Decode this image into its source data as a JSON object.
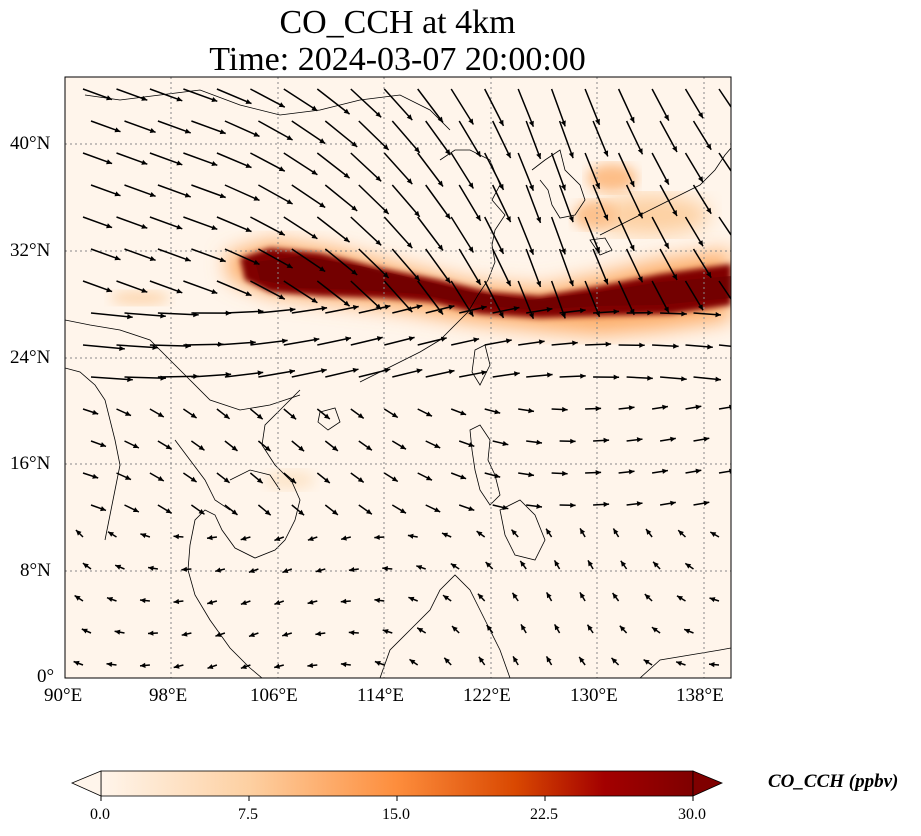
{
  "title_line1": "CO_CCH at 4km",
  "title_line2": "Time: 2024-03-07 20:00:00",
  "lon_ticks": [
    "90°E",
    "98°E",
    "106°E",
    "114°E",
    "122°E",
    "130°E",
    "138°E"
  ],
  "lat_ticks": [
    "40°N",
    "32°N",
    "24°N",
    "16°N",
    "8°N",
    "0°"
  ],
  "colorbar": {
    "label": "CO_CCH (ppbv)",
    "ticks": [
      "0.0",
      "7.5",
      "15.0",
      "22.5",
      "30.0"
    ],
    "range": [
      0,
      30
    ],
    "colormap": [
      "#fff5eb",
      "#fdd0a2",
      "#fd8d3c",
      "#d94801",
      "#a30000",
      "#7f0000"
    ]
  },
  "map": {
    "lon_range": [
      90,
      140
    ],
    "lat_range": [
      0,
      45
    ],
    "background_color": "#fff5eb",
    "coastline_color": "#000000",
    "gridline_color": "#888888"
  },
  "chart_data": {
    "type": "heatmap",
    "variable": "CO_CCH",
    "units": "ppbv",
    "level": "4km",
    "time": "2024-03-07 20:00:00",
    "plume_band": [
      {
        "lon": 102,
        "lat": 31.4,
        "value": 12
      },
      {
        "lon": 105,
        "lat": 30.0,
        "value": 30
      },
      {
        "lon": 110,
        "lat": 29.3,
        "value": 30
      },
      {
        "lon": 115,
        "lat": 28.6,
        "value": 30
      },
      {
        "lon": 120,
        "lat": 27.5,
        "value": 30
      },
      {
        "lon": 125,
        "lat": 27.5,
        "value": 30
      },
      {
        "lon": 130,
        "lat": 28.1,
        "value": 30
      },
      {
        "lon": 135,
        "lat": 28.6,
        "value": 30
      },
      {
        "lon": 139,
        "lat": 30.0,
        "value": 28
      }
    ],
    "secondary_plumes": [
      {
        "lon": 131,
        "lat": 37.5,
        "value": 9
      },
      {
        "lon": 127,
        "lat": 33.5,
        "value": 7
      },
      {
        "lon": 95,
        "lat": 28.5,
        "value": 6
      },
      {
        "lon": 106,
        "lat": 15.0,
        "value": 4
      }
    ]
  }
}
